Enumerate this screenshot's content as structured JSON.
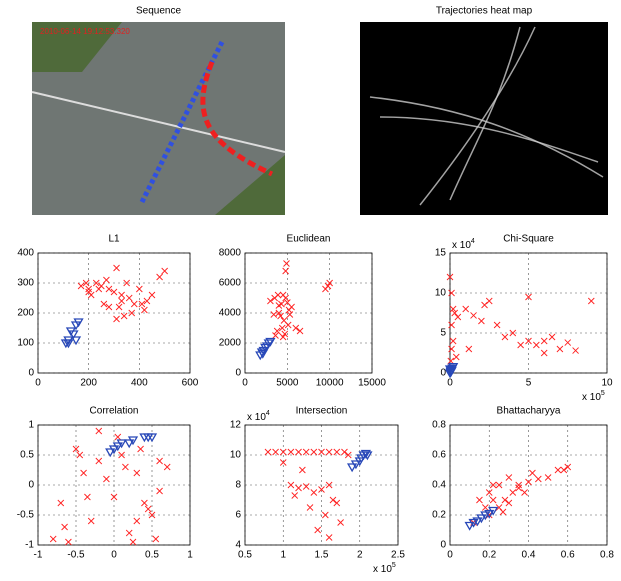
{
  "chart_data": [
    {
      "type": "image",
      "title": "Sequence",
      "overlay_text": "2010-06-14  19:12:53.320"
    },
    {
      "type": "image",
      "title": "Trajectories heat map"
    },
    {
      "type": "scatter",
      "title": "L1",
      "grid": true,
      "xlim": [
        0,
        600
      ],
      "ylim": [
        0,
        400
      ],
      "xticks": [
        0,
        200,
        400,
        600
      ],
      "yticks": [
        0,
        100,
        200,
        300,
        400
      ],
      "series": [
        {
          "color": "#ff2020",
          "marker": "x",
          "x": [
            170,
            190,
            200,
            210,
            230,
            250,
            260,
            270,
            280,
            300,
            310,
            320,
            330,
            340,
            350,
            360,
            380,
            400,
            420,
            430,
            450,
            480,
            500,
            310,
            280,
            240,
            200,
            370,
            410,
            330
          ],
          "values": [
            290,
            300,
            280,
            260,
            300,
            290,
            230,
            310,
            280,
            270,
            350,
            220,
            240,
            190,
            300,
            250,
            230,
            280,
            210,
            240,
            260,
            320,
            340,
            180,
            220,
            280,
            270,
            200,
            230,
            260
          ]
        },
        {
          "color": "#2848b8",
          "marker": "triangle-down",
          "x": [
            110,
            120,
            130,
            140,
            150,
            160,
            120,
            150
          ],
          "values": [
            100,
            110,
            140,
            130,
            110,
            170,
            100,
            160
          ]
        }
      ]
    },
    {
      "type": "scatter",
      "title": "Euclidean",
      "grid": true,
      "xlim": [
        0,
        15000
      ],
      "ylim": [
        0,
        8000
      ],
      "xticks": [
        0,
        5000,
        10000,
        15000
      ],
      "yticks": [
        0,
        2000,
        4000,
        6000,
        8000
      ],
      "series": [
        {
          "color": "#ff2020",
          "marker": "x",
          "x": [
            3000,
            3500,
            4000,
            4200,
            4500,
            4800,
            5000,
            5200,
            4600,
            4400,
            3800,
            3600,
            4000,
            5500,
            6000,
            4900,
            5100,
            4700,
            9500,
            10000,
            9800,
            3900,
            4300,
            5300,
            4800,
            4500,
            6500,
            3400
          ],
          "values": [
            4800,
            5000,
            4500,
            3800,
            5200,
            6800,
            4700,
            4200,
            3500,
            3000,
            2800,
            2500,
            4000,
            4400,
            3000,
            7300,
            3200,
            2600,
            5600,
            6000,
            5800,
            5200,
            4600,
            3900,
            5000,
            2400,
            2800,
            3900
          ]
        },
        {
          "color": "#2848b8",
          "marker": "triangle-down",
          "x": [
            1800,
            2000,
            2200,
            2400,
            2600,
            2800,
            3000,
            2100
          ],
          "values": [
            1200,
            1400,
            1500,
            1700,
            1800,
            2000,
            2100,
            1300
          ]
        }
      ]
    },
    {
      "type": "scatter",
      "title": "Chi-Square",
      "grid": true,
      "xlim": [
        0,
        10
      ],
      "ylim": [
        0,
        15
      ],
      "xticks": [
        0,
        5,
        10
      ],
      "yticks": [
        0,
        5,
        10,
        15
      ],
      "x_multiplier": {
        "base": "x 10",
        "exponent": "5"
      },
      "y_multiplier": {
        "base": "x 10",
        "exponent": "4"
      },
      "series": [
        {
          "color": "#ff2020",
          "marker": "x",
          "x": [
            0,
            0.1,
            0.2,
            0.1,
            0.3,
            0.5,
            1,
            1.5,
            2,
            2.5,
            3,
            4,
            5,
            5.5,
            6,
            6.5,
            7,
            7.5,
            8,
            9,
            0.2,
            0.4,
            1.2,
            3.5,
            4.5,
            5,
            6,
            0.1,
            0.05,
            2.2
          ],
          "values": [
            12,
            10,
            8,
            6,
            7.5,
            7,
            8,
            7.2,
            6.5,
            9,
            6,
            5,
            4,
            3.5,
            4,
            4.5,
            3,
            3.8,
            2.8,
            9,
            4,
            2,
            3,
            4.5,
            3.5,
            9.5,
            2.5,
            3,
            1.5,
            8.5
          ]
        },
        {
          "color": "#2848b8",
          "marker": "triangle-down",
          "x": [
            0,
            0.05,
            0.1,
            0.15,
            0.2,
            0.1,
            0.05,
            0
          ],
          "values": [
            0,
            0.2,
            0.4,
            0.6,
            0.8,
            0.3,
            0.1,
            0.5
          ]
        }
      ]
    },
    {
      "type": "scatter",
      "title": "Correlation",
      "grid": true,
      "xlim": [
        -1,
        1
      ],
      "ylim": [
        -1,
        1
      ],
      "xticks": [
        -1,
        -0.5,
        0,
        0.5,
        1
      ],
      "yticks": [
        -1,
        -0.5,
        0,
        0.5,
        1
      ],
      "series": [
        {
          "color": "#ff2020",
          "marker": "x",
          "x": [
            -0.8,
            -0.7,
            -0.6,
            -0.5,
            -0.4,
            -0.3,
            -0.2,
            -0.1,
            0,
            0.1,
            0.2,
            0.3,
            0.4,
            0.5,
            0.6,
            0.7,
            -0.45,
            -0.65,
            0.05,
            0.15,
            0.25,
            0.35,
            0.45,
            0.55,
            -0.2,
            0.3,
            0.6,
            -0.35
          ],
          "values": [
            -0.9,
            -0.3,
            -0.95,
            0.6,
            0.2,
            -0.6,
            0.4,
            0.1,
            -0.2,
            0.5,
            -0.8,
            0.2,
            -0.3,
            -0.5,
            -0.1,
            0.3,
            0.5,
            -0.7,
            0.8,
            0.3,
            -0.95,
            0.6,
            -0.4,
            -0.9,
            0.9,
            -0.6,
            0.4,
            -0.2
          ]
        },
        {
          "color": "#2848b8",
          "marker": "triangle-down",
          "x": [
            -0.05,
            0,
            0.05,
            0.1,
            0.2,
            0.25,
            0.4,
            0.45,
            0.5
          ],
          "values": [
            0.55,
            0.6,
            0.65,
            0.7,
            0.7,
            0.75,
            0.8,
            0.8,
            0.8
          ]
        }
      ]
    },
    {
      "type": "scatter",
      "title": "Intersection",
      "grid": true,
      "xlim": [
        0.5,
        2.5
      ],
      "ylim": [
        4,
        12
      ],
      "xticks": [
        0.5,
        1,
        1.5,
        2,
        2.5
      ],
      "yticks": [
        4,
        6,
        8,
        10,
        12
      ],
      "x_multiplier": {
        "base": "x 10",
        "exponent": "5"
      },
      "y_multiplier": {
        "base": "x 10",
        "exponent": "4"
      },
      "series": [
        {
          "color": "#ff2020",
          "marker": "x",
          "x": [
            0.8,
            0.9,
            1.0,
            1.1,
            1.2,
            1.3,
            1.4,
            1.5,
            1.6,
            1.7,
            1.8,
            1.1,
            1.2,
            1.3,
            1.4,
            1.5,
            1.6,
            1.45,
            1.55,
            1.65,
            1.75,
            1.35,
            1.25,
            1.6,
            1.7,
            1.0,
            1.15,
            1.85
          ],
          "values": [
            10.2,
            10.2,
            10.2,
            10.2,
            10.2,
            10.2,
            10.2,
            10.2,
            10.2,
            10.2,
            10.2,
            8,
            7.8,
            7.9,
            7.5,
            7.7,
            8,
            5,
            6,
            7,
            5.5,
            6.5,
            9,
            4.5,
            6.8,
            9.5,
            7.3,
            10
          ]
        },
        {
          "color": "#2848b8",
          "marker": "triangle-down",
          "x": [
            1.9,
            1.95,
            2.0,
            2.02,
            2.05,
            2.08,
            2.1
          ],
          "values": [
            9.2,
            9.4,
            9.6,
            9.8,
            10,
            10.1,
            10
          ]
        }
      ]
    },
    {
      "type": "scatter",
      "title": "Bhattacharyya",
      "grid": true,
      "xlim": [
        0,
        0.8
      ],
      "ylim": [
        0,
        0.8
      ],
      "xticks": [
        0,
        0.2,
        0.4,
        0.6,
        0.8
      ],
      "yticks": [
        0,
        0.2,
        0.4,
        0.6,
        0.8
      ],
      "series": [
        {
          "color": "#ff2020",
          "marker": "x",
          "x": [
            0.15,
            0.18,
            0.2,
            0.22,
            0.25,
            0.28,
            0.3,
            0.32,
            0.35,
            0.4,
            0.45,
            0.5,
            0.55,
            0.6,
            0.2,
            0.25,
            0.3,
            0.35,
            0.22,
            0.27,
            0.12,
            0.38,
            0.42,
            0.58
          ],
          "values": [
            0.3,
            0.25,
            0.35,
            0.3,
            0.4,
            0.3,
            0.45,
            0.35,
            0.4,
            0.42,
            0.44,
            0.45,
            0.5,
            0.52,
            0.2,
            0.25,
            0.28,
            0.38,
            0.4,
            0.22,
            0.15,
            0.35,
            0.48,
            0.5
          ]
        },
        {
          "color": "#2848b8",
          "marker": "triangle-down",
          "x": [
            0.1,
            0.12,
            0.14,
            0.16,
            0.18,
            0.2,
            0.22
          ],
          "values": [
            0.13,
            0.15,
            0.16,
            0.18,
            0.2,
            0.21,
            0.23
          ]
        }
      ]
    }
  ]
}
